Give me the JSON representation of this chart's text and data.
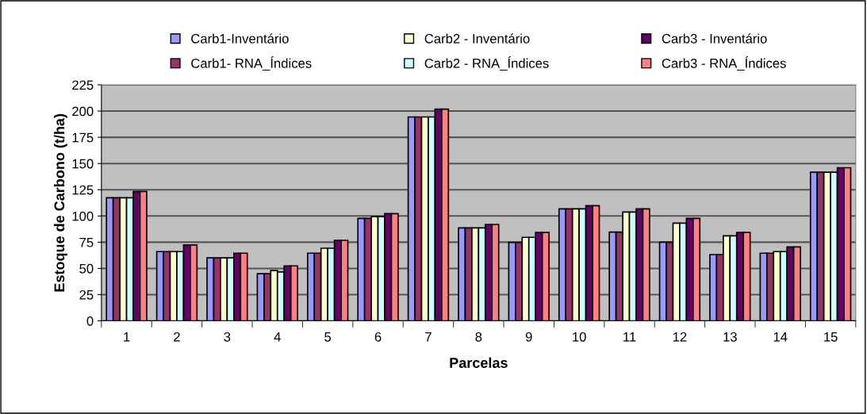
{
  "chart_data": {
    "type": "bar",
    "xlabel": "Parcelas",
    "ylabel": "Estoque de Carbono (t/ha)",
    "categories": [
      "1",
      "2",
      "3",
      "4",
      "5",
      "6",
      "7",
      "8",
      "9",
      "10",
      "11",
      "12",
      "13",
      "14",
      "15"
    ],
    "series": [
      {
        "name": "Carb1-Inventário",
        "color": "#9999ff",
        "values": [
          117.3,
          66,
          60,
          45,
          64.5,
          97.7,
          194.4,
          88.6,
          74.8,
          106.7,
          84.6,
          75,
          63.2,
          64.5,
          141.7
        ]
      },
      {
        "name": "Carb1- RNA_Índices",
        "color": "#993366",
        "values": [
          117.3,
          66,
          60,
          45,
          64.5,
          97.7,
          194.4,
          88.6,
          74.8,
          106.7,
          84.6,
          75,
          63.2,
          64.5,
          141.7
        ]
      },
      {
        "name": "Carb2 - Inventário",
        "color": "#ffffcc",
        "values": [
          117.3,
          66,
          60,
          48,
          69.2,
          99.4,
          194.4,
          88.6,
          79.6,
          106.7,
          103.7,
          93.2,
          81.1,
          66,
          141.7
        ]
      },
      {
        "name": "Carb2 - RNA_Índices",
        "color": "#ccffff",
        "values": [
          117.3,
          66,
          60,
          46.6,
          69.2,
          99.4,
          194.4,
          88.6,
          79.6,
          106.7,
          103.7,
          93.2,
          81.1,
          66,
          141.7
        ]
      },
      {
        "name": "Carb3 - Inventário",
        "color": "#660066",
        "values": [
          123.4,
          72.3,
          64.5,
          52.4,
          76.8,
          102.2,
          201.9,
          91.9,
          84.3,
          109.8,
          106.7,
          97.7,
          84.3,
          70.5,
          146
        ]
      },
      {
        "name": "Carb3 - RNA_Índices",
        "color": "#ff8080",
        "values": [
          123.4,
          72.3,
          64.5,
          52.4,
          76.8,
          102.2,
          201.9,
          91.9,
          84.3,
          109.8,
          106.7,
          97.7,
          84.3,
          70.5,
          146
        ]
      }
    ],
    "ylim": [
      0,
      225
    ],
    "yticks": [
      0,
      25,
      50,
      75,
      100,
      125,
      150,
      175,
      200,
      225
    ],
    "grid": "y",
    "legend": "top"
  }
}
